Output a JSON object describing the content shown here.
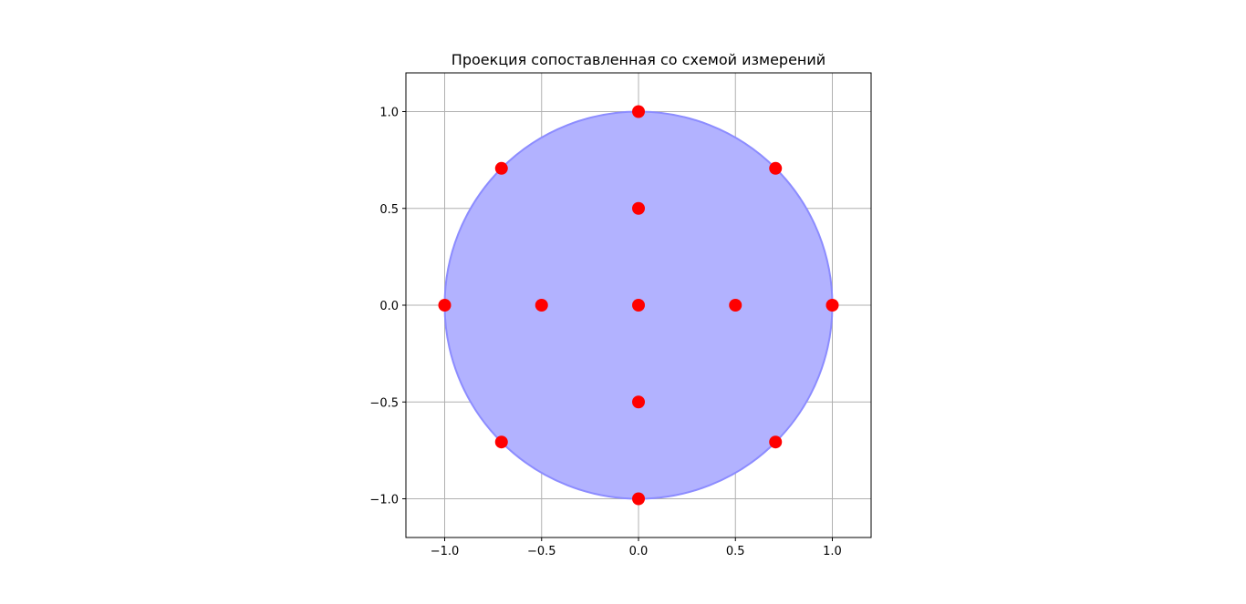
{
  "chart_data": {
    "type": "scatter",
    "title": "Проекция сопоставленная со схемой измерений",
    "xlabel": "",
    "ylabel": "",
    "xlim": [
      -1.2,
      1.2
    ],
    "ylim": [
      -1.2,
      1.2
    ],
    "grid": true,
    "aspect": "equal",
    "x_ticks": [
      -1.0,
      -0.5,
      0.0,
      0.5,
      1.0
    ],
    "y_ticks": [
      -1.0,
      -0.5,
      0.0,
      0.5,
      1.0
    ],
    "x_tick_labels": [
      "−1.0",
      "−0.5",
      "0.0",
      "0.5",
      "1.0"
    ],
    "y_tick_labels": [
      "−1.0",
      "−0.5",
      "0.0",
      "0.5",
      "1.0"
    ],
    "shapes": [
      {
        "kind": "circle",
        "center": [
          0,
          0
        ],
        "radius": 1.0,
        "fill_color": "#b2b2ff",
        "edge_color": "#8c8cff"
      }
    ],
    "series": [
      {
        "color": "#ff0000",
        "points": [
          [
            0.0,
            1.0
          ],
          [
            -0.707,
            0.707
          ],
          [
            0.707,
            0.707
          ],
          [
            0.0,
            0.5
          ],
          [
            -1.0,
            0.0
          ],
          [
            -0.5,
            0.0
          ],
          [
            0.0,
            0.0
          ],
          [
            0.5,
            0.0
          ],
          [
            1.0,
            0.0
          ],
          [
            0.0,
            -0.5
          ],
          [
            -0.707,
            -0.707
          ],
          [
            0.707,
            -0.707
          ],
          [
            0.0,
            -1.0
          ]
        ]
      }
    ]
  }
}
